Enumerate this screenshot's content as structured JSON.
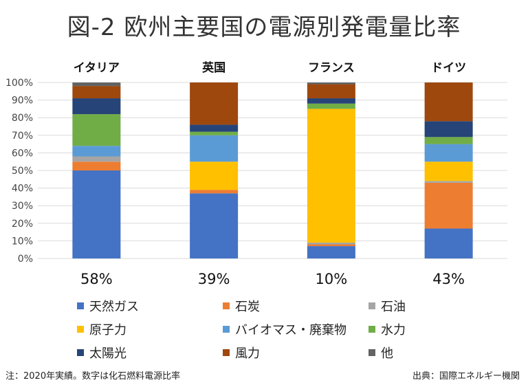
{
  "title": "図-2 欧州主要国の電源別発電量比率",
  "chart_data": {
    "type": "bar",
    "stacked": true,
    "categories": [
      "イタリア",
      "英国",
      "フランス",
      "ドイツ"
    ],
    "fossil_share_labels": [
      "58%",
      "39%",
      "10%",
      "43%"
    ],
    "y_ticks": [
      "0%",
      "10%",
      "20%",
      "30%",
      "40%",
      "50%",
      "60%",
      "70%",
      "80%",
      "90%",
      "100%"
    ],
    "ylim": [
      0,
      100
    ],
    "grid": true,
    "legend_position": "bottom",
    "series": [
      {
        "name": "天然ガス",
        "color": "#4472C4",
        "values": [
          50,
          37,
          7,
          17
        ]
      },
      {
        "name": "石炭",
        "color": "#ED7D31",
        "values": [
          5,
          2,
          1,
          26
        ]
      },
      {
        "name": "石油",
        "color": "#A5A5A5",
        "values": [
          3,
          0,
          1,
          1
        ]
      },
      {
        "name": "原子力",
        "color": "#FFC000",
        "values": [
          0,
          16,
          76,
          11
        ]
      },
      {
        "name": "バイオマス・廃棄物",
        "color": "#5B9BD5",
        "values": [
          6,
          15,
          0,
          10
        ]
      },
      {
        "name": "水力",
        "color": "#70AD47",
        "values": [
          18,
          2,
          3,
          4
        ]
      },
      {
        "name": "太陽光",
        "color": "#264478",
        "values": [
          9,
          4,
          3,
          9
        ]
      },
      {
        "name": "風力",
        "color": "#9E480E",
        "values": [
          7,
          24,
          8,
          22
        ]
      },
      {
        "name": "他",
        "color": "#636363",
        "values": [
          2,
          0,
          1,
          0
        ]
      }
    ]
  },
  "footer": {
    "note": "注：2020年実績。数字は化石燃料電源比率",
    "source": "出典：国際エネルギー機関"
  }
}
